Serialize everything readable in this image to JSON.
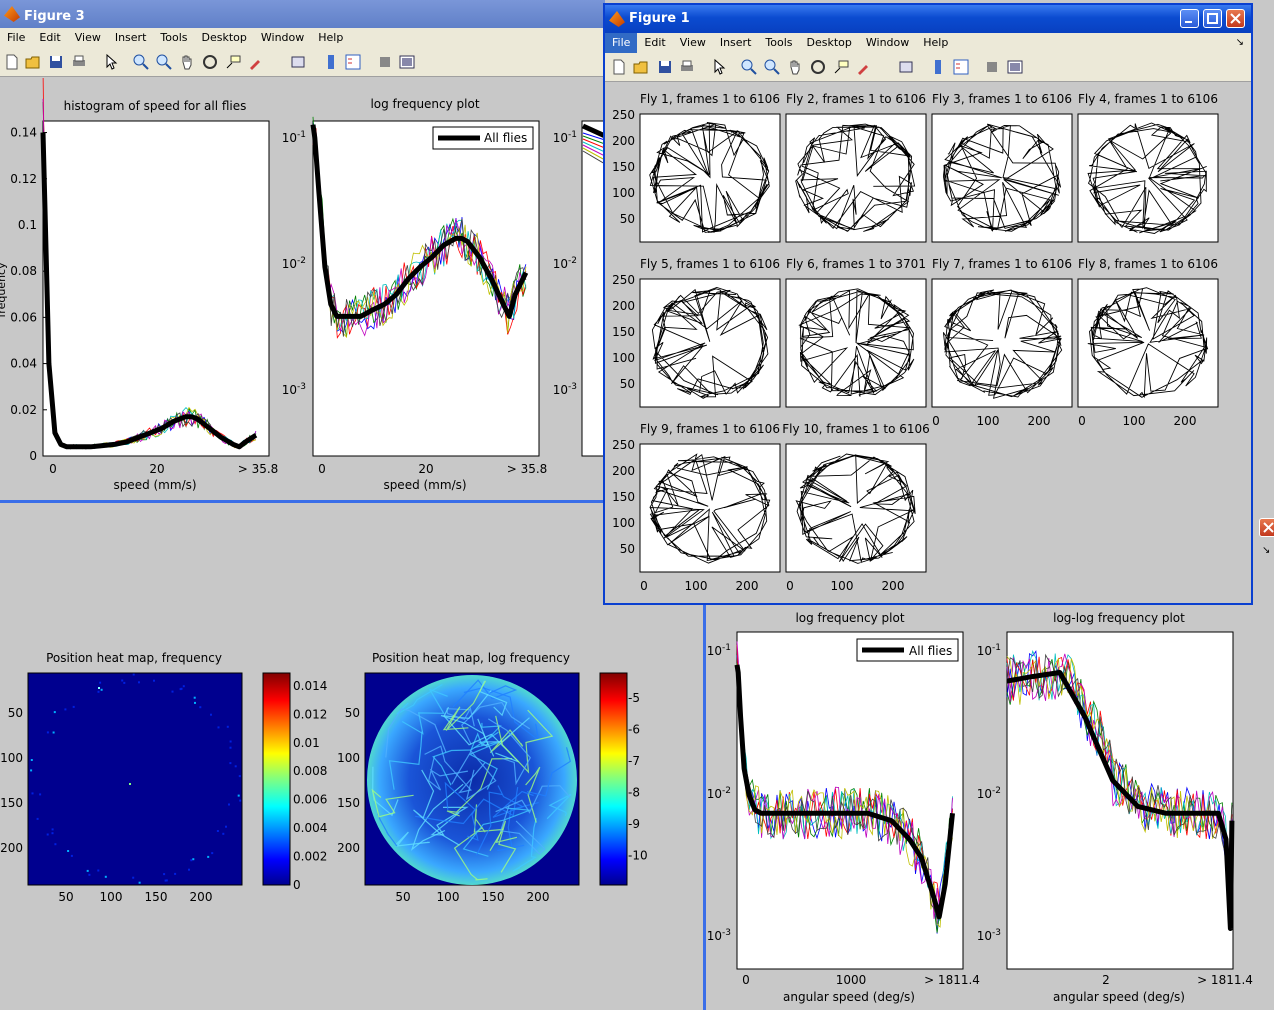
{
  "menu_items": [
    "File",
    "Edit",
    "View",
    "Insert",
    "Tools",
    "Desktop",
    "Window",
    "Help"
  ],
  "fig3": {
    "title": "Figure 3",
    "speed_hist": {
      "title": "histogram of speed for all flies",
      "xlabel": "speed (mm/s)",
      "ylabel": "frequency",
      "xticks": [
        "0",
        "20",
        "> 35.8"
      ],
      "yticks": [
        "0",
        "0.02",
        "0.04",
        "0.06",
        "0.08",
        "0.1",
        "0.12",
        "0.14"
      ]
    },
    "speed_log": {
      "title": "log frequency plot",
      "xlabel": "speed (mm/s)",
      "legend": "All flies",
      "xticks": [
        "0",
        "20",
        "> 35.8"
      ],
      "yticks": [
        {
          "b": "10",
          "e": "-1"
        },
        {
          "b": "10",
          "e": "-2"
        },
        {
          "b": "10",
          "e": "-3"
        }
      ]
    },
    "third_axis_yticks": [
      {
        "b": "10",
        "e": "-1"
      },
      {
        "b": "10",
        "e": "-2"
      },
      {
        "b": "10",
        "e": "-3"
      }
    ],
    "heat_freq": {
      "title": "Position heat map, frequency",
      "xticks": [
        "50",
        "100",
        "150",
        "200"
      ],
      "yticks": [
        "50",
        "100",
        "150",
        "200"
      ],
      "cbar": [
        "0.014",
        "0.012",
        "0.01",
        "0.008",
        "0.006",
        "0.004",
        "0.002",
        "0"
      ]
    },
    "heat_log": {
      "title": "Position heat map, log frequency",
      "xticks": [
        "50",
        "100",
        "150",
        "200"
      ],
      "yticks": [
        "50",
        "100",
        "150",
        "200"
      ],
      "cbar": [
        "-5",
        "-6",
        "-7",
        "-8",
        "-9",
        "-10"
      ]
    }
  },
  "fig2": {
    "ang_log": {
      "title": "log frequency plot",
      "xlabel": "angular speed (deg/s)",
      "legend": "All flies",
      "xticks": [
        "0",
        "1000",
        "> 1811.4"
      ],
      "yticks": [
        {
          "b": "10",
          "e": "-1"
        },
        {
          "b": "10",
          "e": "-2"
        },
        {
          "b": "10",
          "e": "-3"
        }
      ]
    },
    "ang_loglog": {
      "title": "log-log frequency plot",
      "xlabel": "angular speed (deg/s)",
      "xticks": [
        "2",
        "> 1811.4"
      ],
      "yticks": [
        {
          "b": "10",
          "e": "-1"
        },
        {
          "b": "10",
          "e": "-2"
        },
        {
          "b": "10",
          "e": "-3"
        }
      ]
    }
  },
  "fig1": {
    "title": "Figure 1",
    "panels": [
      "Fly 1, frames 1 to 6106",
      "Fly 2, frames 1 to 6106",
      "Fly 3, frames 1 to 6106",
      "Fly 4, frames 1 to 6106",
      "Fly 5, frames 1 to 6106",
      "Fly 6, frames 1 to 3701",
      "Fly 7, frames 1 to 6106",
      "Fly 8, frames 1 to 6106",
      "Fly 9, frames 1 to 6106",
      "Fly 10, frames 1 to 6106"
    ],
    "yticks": [
      "250",
      "200",
      "150",
      "100",
      "50"
    ],
    "xticks": [
      "0",
      "100",
      "200"
    ]
  },
  "colors": {
    "xp_title": "#0a246a",
    "xp_title2": "#3a6ee8",
    "menu_bg": "#ece9d8",
    "figure_bg": "#c8c8c8",
    "series": [
      "#0000ff",
      "#008000",
      "#ff0000",
      "#00bfbf",
      "#bf00bf",
      "#bfbf00",
      "#404040"
    ]
  },
  "chart_data": [
    {
      "type": "line",
      "title": "histogram of speed for all flies",
      "xlabel": "speed (mm/s)",
      "ylabel": "frequency",
      "xlim": [
        0,
        38
      ],
      "ylim": [
        0,
        0.145
      ],
      "series": [
        {
          "name": "All flies",
          "x": [
            0,
            0.3,
            1,
            2,
            3,
            4,
            6,
            8,
            10,
            12,
            14,
            16,
            18,
            20,
            22,
            24,
            25,
            26,
            28,
            30,
            32,
            33,
            34,
            35.8
          ],
          "y": [
            0.14,
            0.11,
            0.04,
            0.01,
            0.005,
            0.004,
            0.004,
            0.004,
            0.0045,
            0.005,
            0.006,
            0.008,
            0.01,
            0.012,
            0.015,
            0.017,
            0.017,
            0.016,
            0.012,
            0.008,
            0.005,
            0.004,
            0.006,
            0.009
          ]
        }
      ]
    },
    {
      "type": "line",
      "title": "log frequency plot",
      "xlabel": "speed (mm/s)",
      "xlim": [
        0,
        38
      ],
      "ylim": [
        0.0003,
        0.15
      ],
      "yscale": "log",
      "legend": "top-right",
      "series": [
        {
          "name": "All flies",
          "x": [
            0,
            0.3,
            1,
            2,
            3,
            4,
            6,
            8,
            10,
            12,
            14,
            16,
            18,
            20,
            22,
            24,
            25,
            26,
            28,
            30,
            32,
            33,
            34,
            35.8
          ],
          "y": [
            0.14,
            0.11,
            0.04,
            0.01,
            0.005,
            0.004,
            0.004,
            0.004,
            0.0045,
            0.005,
            0.006,
            0.008,
            0.01,
            0.012,
            0.015,
            0.017,
            0.017,
            0.016,
            0.012,
            0.008,
            0.005,
            0.004,
            0.006,
            0.009
          ]
        }
      ]
    },
    {
      "type": "line",
      "title": "log frequency plot",
      "xlabel": "angular speed (deg/s)",
      "xlim": [
        0,
        1900
      ],
      "ylim": [
        0.0008,
        0.15
      ],
      "yscale": "log",
      "legend": "top-right",
      "series": [
        {
          "name": "All flies",
          "x": [
            0,
            10,
            30,
            60,
            100,
            150,
            200,
            300,
            500,
            700,
            900,
            1100,
            1300,
            1450,
            1550,
            1650,
            1700,
            1750,
            1811.4
          ],
          "y": [
            0.09,
            0.08,
            0.04,
            0.018,
            0.012,
            0.0095,
            0.009,
            0.009,
            0.009,
            0.009,
            0.009,
            0.009,
            0.008,
            0.006,
            0.0045,
            0.0025,
            0.0018,
            0.003,
            0.009
          ]
        }
      ]
    },
    {
      "type": "line",
      "title": "log-log frequency plot",
      "xlabel": "angular speed (deg/s)",
      "xlim": [
        0.1,
        1900
      ],
      "xscale": "log",
      "ylim": [
        0.0008,
        0.15
      ],
      "yscale": "log",
      "series": [
        {
          "name": "All flies",
          "x": [
            0.1,
            0.3,
            1,
            3,
            10,
            30,
            100,
            300,
            1000,
            1400,
            1700,
            1811.4
          ],
          "y": [
            0.07,
            0.075,
            0.08,
            0.04,
            0.015,
            0.01,
            0.009,
            0.009,
            0.009,
            0.006,
            0.0015,
            0.008
          ]
        }
      ]
    },
    {
      "type": "heatmap",
      "title": "Position heat map, frequency",
      "xlim": [
        0,
        240
      ],
      "ylim": [
        0,
        240
      ],
      "colorbar": [
        0,
        0.015
      ]
    },
    {
      "type": "heatmap",
      "title": "Position heat map, log frequency",
      "xlim": [
        0,
        240
      ],
      "ylim": [
        0,
        240
      ],
      "colorbar": [
        -11,
        -4
      ]
    }
  ]
}
